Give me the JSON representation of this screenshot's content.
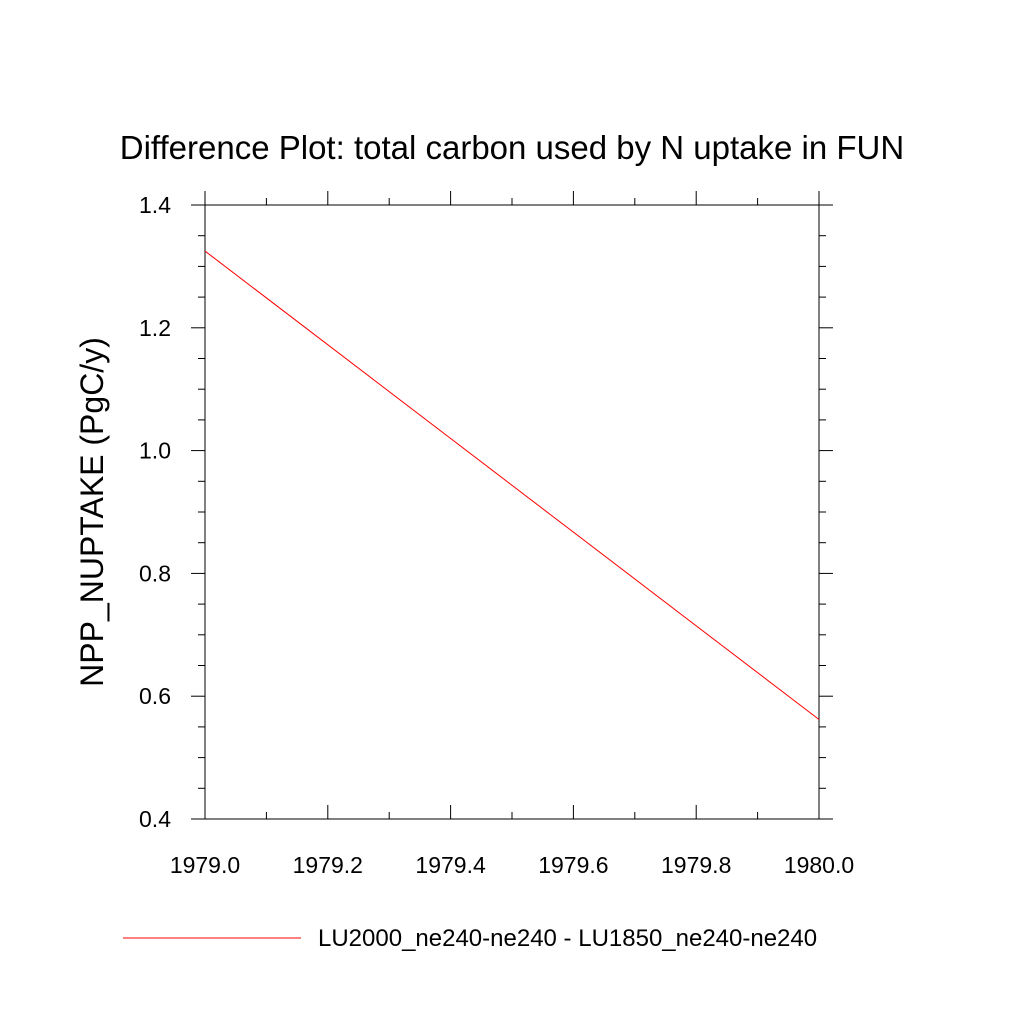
{
  "chart_data": {
    "type": "line",
    "title": "Difference Plot: total carbon used by N uptake in FUN",
    "xlabel": "",
    "ylabel": "NPP_NUPTAKE  (PgC/y)",
    "xlim": [
      1979.0,
      1980.0
    ],
    "ylim": [
      0.4,
      1.4
    ],
    "x_ticks": [
      "1979.0",
      "1979.2",
      "1979.4",
      "1979.6",
      "1979.8",
      "1980.0"
    ],
    "y_ticks": [
      "0.4",
      "0.6",
      "0.8",
      "1.0",
      "1.2",
      "1.4"
    ],
    "x_minor_step": 0.1,
    "y_minor_step": 0.05,
    "grid": false,
    "legend_position": "bottom",
    "series": [
      {
        "name": "LU2000_ne240-ne240 - LU1850_ne240-ne240",
        "color": "#ff0000",
        "x": [
          1979.0,
          1980.0
        ],
        "y": [
          1.325,
          0.562
        ]
      }
    ]
  }
}
